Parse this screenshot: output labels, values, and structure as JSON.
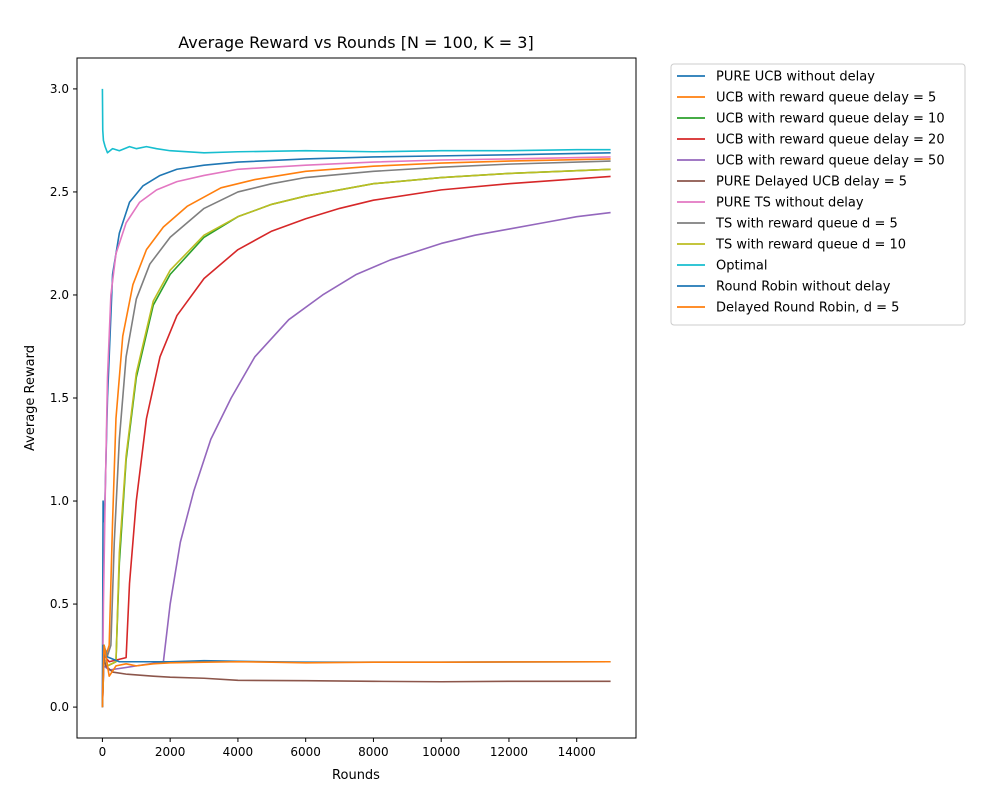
{
  "chart_data": {
    "type": "line",
    "title": "Average Reward vs Rounds [N = 100, K = 3]",
    "xlabel": "Rounds",
    "ylabel": "Average Reward",
    "xlim": [
      -750,
      15750
    ],
    "ylim": [
      -0.15,
      3.15
    ],
    "xticks": [
      0,
      2000,
      4000,
      6000,
      8000,
      10000,
      12000,
      14000
    ],
    "yticks": [
      0.0,
      0.5,
      1.0,
      1.5,
      2.0,
      2.5,
      3.0
    ],
    "xtick_labels": [
      "0",
      "2000",
      "4000",
      "6000",
      "8000",
      "10000",
      "12000",
      "14000"
    ],
    "ytick_labels": [
      "0.0",
      "0.5",
      "1.0",
      "1.5",
      "2.0",
      "2.5",
      "3.0"
    ],
    "grid": false,
    "legend_position": "outside-right-top",
    "series": [
      {
        "name": "PURE UCB without delay",
        "color": "#1f77b4",
        "points": [
          [
            0,
            0.0
          ],
          [
            20,
            1.0
          ],
          [
            60,
            0.9
          ],
          [
            150,
            1.5
          ],
          [
            300,
            2.1
          ],
          [
            500,
            2.3
          ],
          [
            800,
            2.45
          ],
          [
            1200,
            2.53
          ],
          [
            1700,
            2.58
          ],
          [
            2200,
            2.61
          ],
          [
            3000,
            2.63
          ],
          [
            4000,
            2.645
          ],
          [
            6000,
            2.66
          ],
          [
            8000,
            2.67
          ],
          [
            10000,
            2.675
          ],
          [
            12000,
            2.68
          ],
          [
            15000,
            2.69
          ]
        ]
      },
      {
        "name": "UCB with reward queue delay = 5",
        "color": "#ff7f0e",
        "points": [
          [
            0,
            0.0
          ],
          [
            30,
            0.3
          ],
          [
            100,
            0.25
          ],
          [
            200,
            0.3
          ],
          [
            300,
            0.9
          ],
          [
            400,
            1.4
          ],
          [
            600,
            1.8
          ],
          [
            900,
            2.05
          ],
          [
            1300,
            2.22
          ],
          [
            1800,
            2.33
          ],
          [
            2500,
            2.43
          ],
          [
            3500,
            2.52
          ],
          [
            4500,
            2.56
          ],
          [
            6000,
            2.6
          ],
          [
            8000,
            2.625
          ],
          [
            10000,
            2.64
          ],
          [
            12000,
            2.65
          ],
          [
            15000,
            2.66
          ]
        ]
      },
      {
        "name": "UCB with reward queue delay = 10",
        "color": "#2ca02c",
        "points": [
          [
            0,
            0.0
          ],
          [
            50,
            0.3
          ],
          [
            150,
            0.2
          ],
          [
            400,
            0.22
          ],
          [
            500,
            0.7
          ],
          [
            700,
            1.2
          ],
          [
            1000,
            1.6
          ],
          [
            1500,
            1.95
          ],
          [
            2000,
            2.1
          ],
          [
            3000,
            2.28
          ],
          [
            4000,
            2.38
          ],
          [
            5000,
            2.44
          ],
          [
            6000,
            2.48
          ],
          [
            8000,
            2.54
          ],
          [
            10000,
            2.57
          ],
          [
            12000,
            2.59
          ],
          [
            15000,
            2.61
          ]
        ]
      },
      {
        "name": "UCB with reward queue delay = 20",
        "color": "#d62728",
        "points": [
          [
            0,
            0.0
          ],
          [
            50,
            0.25
          ],
          [
            200,
            0.22
          ],
          [
            700,
            0.24
          ],
          [
            800,
            0.6
          ],
          [
            1000,
            1.0
          ],
          [
            1300,
            1.4
          ],
          [
            1700,
            1.7
          ],
          [
            2200,
            1.9
          ],
          [
            3000,
            2.08
          ],
          [
            4000,
            2.22
          ],
          [
            5000,
            2.31
          ],
          [
            6000,
            2.37
          ],
          [
            7000,
            2.42
          ],
          [
            8000,
            2.46
          ],
          [
            10000,
            2.51
          ],
          [
            12000,
            2.54
          ],
          [
            15000,
            2.575
          ]
        ]
      },
      {
        "name": "UCB with reward queue delay = 50",
        "color": "#9467bd",
        "points": [
          [
            0,
            0.0
          ],
          [
            40,
            0.2
          ],
          [
            200,
            0.18
          ],
          [
            1000,
            0.2
          ],
          [
            1800,
            0.22
          ],
          [
            2000,
            0.5
          ],
          [
            2300,
            0.8
          ],
          [
            2700,
            1.05
          ],
          [
            3200,
            1.3
          ],
          [
            3800,
            1.5
          ],
          [
            4500,
            1.7
          ],
          [
            5500,
            1.88
          ],
          [
            6500,
            2.0
          ],
          [
            7500,
            2.1
          ],
          [
            8500,
            2.17
          ],
          [
            10000,
            2.25
          ],
          [
            11000,
            2.29
          ],
          [
            12000,
            2.32
          ],
          [
            13000,
            2.35
          ],
          [
            14000,
            2.38
          ],
          [
            15000,
            2.4
          ]
        ]
      },
      {
        "name": "PURE Delayed UCB delay = 5",
        "color": "#8c564b",
        "points": [
          [
            0,
            0.0
          ],
          [
            30,
            0.25
          ],
          [
            100,
            0.2
          ],
          [
            300,
            0.17
          ],
          [
            700,
            0.16
          ],
          [
            1500,
            0.15
          ],
          [
            2000,
            0.145
          ],
          [
            3000,
            0.14
          ],
          [
            4000,
            0.13
          ],
          [
            6000,
            0.128
          ],
          [
            8000,
            0.125
          ],
          [
            10000,
            0.123
          ],
          [
            12000,
            0.125
          ],
          [
            15000,
            0.125
          ]
        ]
      },
      {
        "name": "PURE TS without delay",
        "color": "#e377c2",
        "points": [
          [
            0,
            0.0
          ],
          [
            30,
            0.5
          ],
          [
            80,
            1.0
          ],
          [
            150,
            1.6
          ],
          [
            250,
            2.0
          ],
          [
            400,
            2.2
          ],
          [
            700,
            2.35
          ],
          [
            1100,
            2.45
          ],
          [
            1600,
            2.51
          ],
          [
            2200,
            2.55
          ],
          [
            3000,
            2.58
          ],
          [
            4000,
            2.61
          ],
          [
            6000,
            2.63
          ],
          [
            8000,
            2.645
          ],
          [
            10000,
            2.655
          ],
          [
            12000,
            2.66
          ],
          [
            15000,
            2.67
          ]
        ]
      },
      {
        "name": "TS with reward queue d = 5",
        "color": "#7f7f7f",
        "points": [
          [
            0,
            0.0
          ],
          [
            40,
            0.3
          ],
          [
            150,
            0.25
          ],
          [
            250,
            0.3
          ],
          [
            350,
            0.8
          ],
          [
            500,
            1.3
          ],
          [
            700,
            1.7
          ],
          [
            1000,
            1.98
          ],
          [
            1400,
            2.15
          ],
          [
            2000,
            2.28
          ],
          [
            3000,
            2.42
          ],
          [
            4000,
            2.5
          ],
          [
            5000,
            2.54
          ],
          [
            6000,
            2.57
          ],
          [
            8000,
            2.6
          ],
          [
            10000,
            2.62
          ],
          [
            12000,
            2.635
          ],
          [
            15000,
            2.65
          ]
        ]
      },
      {
        "name": "TS with reward queue d = 10",
        "color": "#bcbd22",
        "points": [
          [
            0,
            0.0
          ],
          [
            50,
            0.3
          ],
          [
            150,
            0.2
          ],
          [
            400,
            0.22
          ],
          [
            500,
            0.75
          ],
          [
            700,
            1.22
          ],
          [
            1000,
            1.62
          ],
          [
            1500,
            1.97
          ],
          [
            2000,
            2.12
          ],
          [
            3000,
            2.29
          ],
          [
            4000,
            2.38
          ],
          [
            5000,
            2.44
          ],
          [
            6000,
            2.48
          ],
          [
            8000,
            2.54
          ],
          [
            10000,
            2.57
          ],
          [
            12000,
            2.59
          ],
          [
            15000,
            2.61
          ]
        ]
      },
      {
        "name": "Optimal",
        "color": "#17becf",
        "points": [
          [
            0,
            3.0
          ],
          [
            10,
            2.8
          ],
          [
            30,
            2.75
          ],
          [
            80,
            2.72
          ],
          [
            150,
            2.69
          ],
          [
            300,
            2.71
          ],
          [
            500,
            2.7
          ],
          [
            800,
            2.72
          ],
          [
            1000,
            2.71
          ],
          [
            1300,
            2.72
          ],
          [
            1600,
            2.71
          ],
          [
            2000,
            2.7
          ],
          [
            3000,
            2.69
          ],
          [
            4000,
            2.695
          ],
          [
            6000,
            2.7
          ],
          [
            8000,
            2.695
          ],
          [
            10000,
            2.7
          ],
          [
            12000,
            2.7
          ],
          [
            14000,
            2.705
          ],
          [
            15000,
            2.705
          ]
        ]
      },
      {
        "name": "Round Robin without delay",
        "color": "#1f77b4",
        "points": [
          [
            0,
            0.0
          ],
          [
            20,
            0.3
          ],
          [
            60,
            0.25
          ],
          [
            200,
            0.24
          ],
          [
            500,
            0.22
          ],
          [
            1000,
            0.22
          ],
          [
            2000,
            0.22
          ],
          [
            3000,
            0.225
          ],
          [
            4000,
            0.222
          ],
          [
            5000,
            0.22
          ],
          [
            6000,
            0.218
          ],
          [
            8000,
            0.218
          ],
          [
            10000,
            0.218
          ],
          [
            12000,
            0.219
          ],
          [
            15000,
            0.22
          ]
        ]
      },
      {
        "name": "Delayed Round Robin, d = 5",
        "color": "#ff7f0e",
        "points": [
          [
            0,
            0.0
          ],
          [
            20,
            0.15
          ],
          [
            50,
            0.3
          ],
          [
            100,
            0.25
          ],
          [
            200,
            0.15
          ],
          [
            400,
            0.2
          ],
          [
            700,
            0.21
          ],
          [
            1000,
            0.2
          ],
          [
            1500,
            0.21
          ],
          [
            2000,
            0.215
          ],
          [
            3000,
            0.218
          ],
          [
            4000,
            0.22
          ],
          [
            5000,
            0.218
          ],
          [
            6000,
            0.215
          ],
          [
            8000,
            0.218
          ],
          [
            10000,
            0.218
          ],
          [
            12000,
            0.219
          ],
          [
            15000,
            0.22
          ]
        ]
      }
    ]
  }
}
